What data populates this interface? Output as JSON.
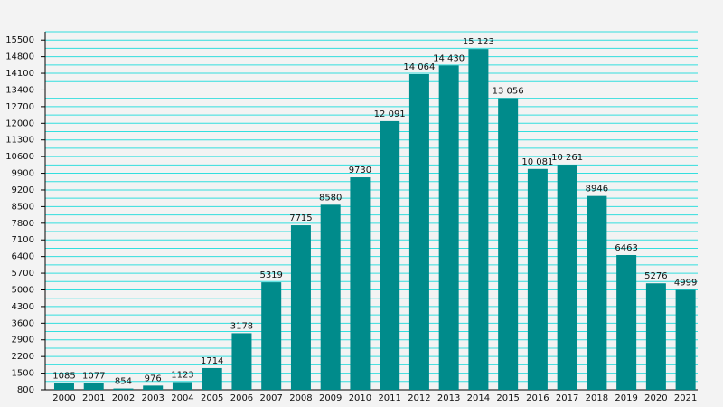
{
  "chart_data": {
    "type": "bar",
    "categories": [
      "2000",
      "2001",
      "2002",
      "2003",
      "2004",
      "2005",
      "2006",
      "2007",
      "2008",
      "2009",
      "2010",
      "2011",
      "2012",
      "2013",
      "2014",
      "2015",
      "2016",
      "2017",
      "2018",
      "2019",
      "2020",
      "2021"
    ],
    "values": [
      1085,
      1077,
      854,
      976,
      1123,
      1714,
      3178,
      5319,
      7715,
      8580,
      9730,
      12091,
      14064,
      14430,
      15123,
      13056,
      10081,
      10261,
      8946,
      6463,
      5276,
      4999
    ],
    "value_labels": [
      "1085",
      "1077",
      "854",
      "976",
      "1123",
      "1714",
      "3178",
      "5319",
      "7715",
      "8580",
      "9730",
      "12 091",
      "14 064",
      "14 430",
      "15 123",
      "13 056",
      "10 081",
      "10 261",
      "8946",
      "6463",
      "5276",
      "4999"
    ],
    "color": "#008b8b",
    "ylim": [
      800,
      15850
    ],
    "yticks": [
      800,
      1500,
      2200,
      2900,
      3600,
      4300,
      5000,
      5700,
      6400,
      7100,
      7800,
      8500,
      9200,
      9900,
      10600,
      11300,
      12000,
      12700,
      13400,
      14100,
      14800,
      15500
    ],
    "grid": true,
    "minor_grid": true,
    "grid_color": "#33dede"
  }
}
